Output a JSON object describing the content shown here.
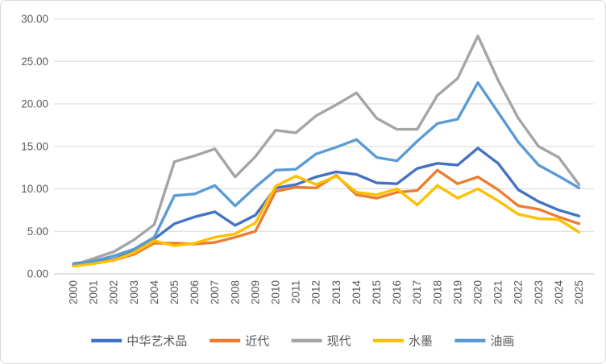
{
  "chart_data": {
    "type": "line",
    "title": "",
    "xlabel": "",
    "ylabel": "",
    "ylim": [
      0,
      30
    ],
    "grid": true,
    "legend_position": "bottom",
    "background_color": "#ffffff",
    "gridline_color": "#d9d9d9",
    "axis_line_color": "#bfbfbf",
    "tick_label_color": "#595959",
    "y_tick_labels": [
      "30.00",
      "25.00",
      "20.00",
      "15.00",
      "10.00",
      "5.00",
      "0.00"
    ],
    "y_tick_values": [
      30,
      25,
      20,
      15,
      10,
      5,
      0
    ],
    "categories": [
      2000,
      2001,
      2002,
      2003,
      2004,
      2005,
      2006,
      2007,
      2008,
      2009,
      2010,
      2011,
      2012,
      2013,
      2014,
      2015,
      2016,
      2017,
      2018,
      2019,
      2020,
      2021,
      2022,
      2023,
      2024,
      2025
    ],
    "series": [
      {
        "id": "zhonghua-yishupin",
        "name": "中华艺术品",
        "color": "#4472C4",
        "values": [
          1.0,
          1.3,
          1.7,
          2.7,
          4.1,
          5.9,
          6.7,
          7.3,
          5.7,
          6.9,
          10.1,
          10.5,
          11.4,
          12.0,
          11.7,
          10.7,
          10.6,
          12.4,
          13.0,
          12.8,
          14.8,
          13.0,
          9.9,
          8.5,
          7.5,
          6.8
        ]
      },
      {
        "id": "jindai",
        "name": "近代",
        "color": "#ED7D31",
        "values": [
          1.0,
          1.2,
          1.6,
          2.3,
          3.6,
          3.6,
          3.5,
          3.7,
          4.3,
          5.0,
          9.7,
          10.2,
          10.1,
          11.6,
          9.3,
          8.9,
          9.6,
          9.8,
          12.2,
          10.6,
          11.4,
          9.9,
          8.0,
          7.6,
          6.7,
          5.9
        ]
      },
      {
        "id": "xiandai",
        "name": "现代",
        "color": "#A5A5A5",
        "values": [
          1.0,
          1.8,
          2.6,
          4.0,
          5.8,
          13.2,
          13.9,
          14.7,
          11.4,
          13.8,
          16.9,
          16.6,
          18.6,
          19.9,
          21.3,
          18.3,
          17.0,
          17.0,
          21.0,
          23.0,
          28.0,
          22.8,
          18.3,
          15.0,
          13.7,
          10.5
        ]
      },
      {
        "id": "shuimo",
        "name": "水墨",
        "color": "#FFC000",
        "values": [
          0.9,
          1.2,
          1.6,
          2.5,
          3.9,
          3.3,
          3.6,
          4.3,
          4.7,
          6.0,
          10.3,
          11.5,
          10.5,
          11.5,
          9.6,
          9.3,
          10.0,
          8.1,
          10.4,
          8.9,
          10.0,
          8.6,
          7.0,
          6.5,
          6.4,
          4.9
        ]
      },
      {
        "id": "youhua",
        "name": "油画",
        "color": "#5B9BD5",
        "values": [
          1.2,
          1.5,
          2.1,
          2.9,
          4.3,
          9.2,
          9.4,
          10.4,
          8.0,
          10.2,
          12.2,
          12.3,
          14.1,
          14.9,
          15.8,
          13.7,
          13.3,
          15.6,
          17.7,
          18.2,
          22.5,
          19.0,
          15.5,
          12.8,
          11.5,
          10.1
        ]
      }
    ]
  }
}
